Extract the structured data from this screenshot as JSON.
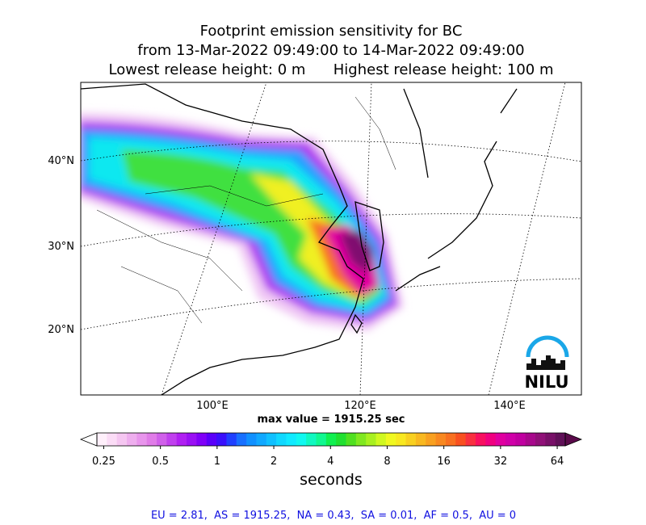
{
  "title_lines": [
    "Footprint emission sensitivity for BC",
    "from 13-Mar-2022 09:49:00 to 14-Mar-2022 09:49:00",
    "Lowest release height: 0 m      Highest release height: 100 m"
  ],
  "lat_labels": [
    "40°N",
    "30°N",
    "20°N"
  ],
  "lon_labels": [
    "100°E",
    "120°E",
    "140°E"
  ],
  "max_value_text": "max value = 1915.25 sec",
  "logo_text": "NILU",
  "colorbar": {
    "label": "seconds",
    "log": true,
    "lim": [
      0.23,
      70.6
    ],
    "ticks": [
      0.25,
      0.5,
      1,
      2,
      4,
      8,
      16,
      32,
      64
    ],
    "under_color": "#ffffff",
    "over_color": "#5a0a4a",
    "colors": [
      "#fff0fb",
      "#fbdcf6",
      "#f5c6f1",
      "#eeaeee",
      "#e895ec",
      "#e07ce8",
      "#d060ea",
      "#c040ee",
      "#b020f2",
      "#9a10f4",
      "#8000f8",
      "#5a00fa",
      "#3a10fc",
      "#2040ff",
      "#1870ff",
      "#1090ff",
      "#10a8ff",
      "#10c0ff",
      "#10d8ff",
      "#10eaff",
      "#10f8f0",
      "#10f8c0",
      "#10f890",
      "#10f050",
      "#20e030",
      "#50e020",
      "#80e820",
      "#a8f020",
      "#d0f820",
      "#f0f820",
      "#f8e820",
      "#f8d020",
      "#f8b820",
      "#f8a020",
      "#f88820",
      "#f87020",
      "#f85020",
      "#f83040",
      "#f81060",
      "#f00080",
      "#e000a0",
      "#d000a8",
      "#c000a0",
      "#a8088c",
      "#901078",
      "#781068",
      "#601058"
    ]
  },
  "footer": "EU = 2.81,  AS = 1915.25,  NA = 0.43,  SA = 0.01,  AF = 0.5,  AU = 0"
}
